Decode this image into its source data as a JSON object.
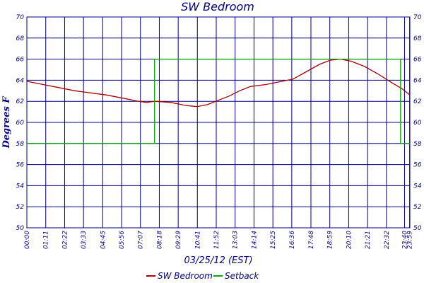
{
  "chart_data": {
    "type": "line",
    "title": "SW Bedroom",
    "xlabel": "03/25/12 (EST)",
    "ylabel": "Degrees F",
    "xlim": [
      0,
      1440
    ],
    "ylim": [
      50,
      70
    ],
    "y_ticks": [
      50,
      52,
      54,
      56,
      58,
      60,
      62,
      64,
      66,
      68,
      70
    ],
    "x_ticks": [
      {
        "t": 0,
        "label": "00:00"
      },
      {
        "t": 71,
        "label": "01:11"
      },
      {
        "t": 142,
        "label": "02:22"
      },
      {
        "t": 213,
        "label": "03:33"
      },
      {
        "t": 285,
        "label": "04:45"
      },
      {
        "t": 356,
        "label": "05:56"
      },
      {
        "t": 427,
        "label": "07:07"
      },
      {
        "t": 498,
        "label": "08:18"
      },
      {
        "t": 569,
        "label": "09:29"
      },
      {
        "t": 641,
        "label": "10:41"
      },
      {
        "t": 712,
        "label": "11:52"
      },
      {
        "t": 783,
        "label": "13:03"
      },
      {
        "t": 854,
        "label": "14:14"
      },
      {
        "t": 925,
        "label": "15:25"
      },
      {
        "t": 996,
        "label": "16:36"
      },
      {
        "t": 1068,
        "label": "17:48"
      },
      {
        "t": 1139,
        "label": "18:59"
      },
      {
        "t": 1210,
        "label": "20:10"
      },
      {
        "t": 1281,
        "label": "21:21"
      },
      {
        "t": 1352,
        "label": "22:32"
      },
      {
        "t": 1420,
        "label": "23:40"
      },
      {
        "t": 1439,
        "label": "23:59"
      }
    ],
    "grid": true,
    "legend_position": "bottom",
    "series": [
      {
        "name": "SW Bedroom",
        "color": "#aa0000",
        "points": [
          [
            0,
            63.9
          ],
          [
            60,
            63.6
          ],
          [
            120,
            63.3
          ],
          [
            180,
            63.0
          ],
          [
            240,
            62.8
          ],
          [
            300,
            62.6
          ],
          [
            360,
            62.3
          ],
          [
            420,
            62.0
          ],
          [
            450,
            61.9
          ],
          [
            480,
            62.0
          ],
          [
            540,
            61.9
          ],
          [
            600,
            61.6
          ],
          [
            640,
            61.5
          ],
          [
            680,
            61.7
          ],
          [
            720,
            62.1
          ],
          [
            760,
            62.5
          ],
          [
            800,
            63.0
          ],
          [
            840,
            63.4
          ],
          [
            900,
            63.6
          ],
          [
            960,
            63.9
          ],
          [
            1000,
            64.1
          ],
          [
            1050,
            64.8
          ],
          [
            1100,
            65.5
          ],
          [
            1140,
            65.9
          ],
          [
            1180,
            66.0
          ],
          [
            1220,
            65.8
          ],
          [
            1270,
            65.3
          ],
          [
            1320,
            64.6
          ],
          [
            1370,
            63.8
          ],
          [
            1410,
            63.2
          ],
          [
            1440,
            62.6
          ]
        ]
      },
      {
        "name": "Setback",
        "color": "#00aa00",
        "points": [
          [
            0,
            58
          ],
          [
            480,
            58
          ],
          [
            480,
            66
          ],
          [
            1405,
            66
          ],
          [
            1405,
            58
          ],
          [
            1440,
            58
          ]
        ]
      }
    ]
  }
}
